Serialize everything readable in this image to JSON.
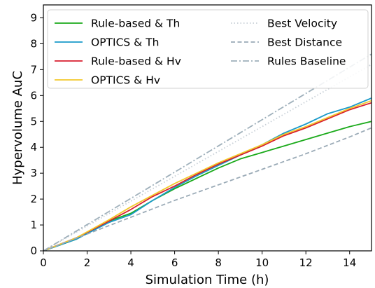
{
  "chart_data": {
    "type": "line",
    "xlabel": "Simulation Time (h)",
    "ylabel": "Hypervolume AuC",
    "xlim": [
      0,
      15
    ],
    "ylim": [
      0,
      9.5
    ],
    "xticks": [
      0,
      2,
      4,
      6,
      8,
      10,
      12,
      14
    ],
    "yticks": [
      0,
      1,
      2,
      3,
      4,
      5,
      6,
      7,
      8,
      9
    ],
    "grid": false,
    "legend": {
      "placement": "top",
      "columns": 2
    },
    "series": [
      {
        "name": "Rule-based & Th",
        "color": "#1aaa1a",
        "style": "solid",
        "x": [
          0,
          1.5,
          3,
          4,
          5,
          6,
          7,
          8,
          9,
          10,
          11,
          12,
          13,
          14,
          15
        ],
        "y": [
          0,
          0.45,
          1.15,
          1.45,
          1.95,
          2.4,
          2.8,
          3.2,
          3.55,
          3.8,
          4.05,
          4.3,
          4.55,
          4.8,
          5.0
        ]
      },
      {
        "name": "OPTICS & Th",
        "color": "#1a9ac9",
        "style": "solid",
        "x": [
          0,
          1.5,
          3,
          4,
          5,
          6,
          7,
          8,
          9,
          10,
          11,
          12,
          13,
          14,
          15
        ],
        "y": [
          0,
          0.45,
          1.1,
          1.4,
          1.95,
          2.45,
          2.9,
          3.3,
          3.7,
          4.1,
          4.55,
          4.9,
          5.3,
          5.55,
          5.9
        ]
      },
      {
        "name": "Rule-based & Hv",
        "color": "#d81e2e",
        "style": "solid",
        "x": [
          0,
          1.5,
          3,
          4,
          5,
          6,
          7,
          8,
          9,
          10,
          11,
          12,
          13,
          14,
          15
        ],
        "y": [
          0,
          0.5,
          1.15,
          1.6,
          2.1,
          2.5,
          2.95,
          3.35,
          3.7,
          4.05,
          4.45,
          4.75,
          5.1,
          5.45,
          5.72
        ]
      },
      {
        "name": "OPTICS & Hv",
        "color": "#f2c82a",
        "style": "solid",
        "x": [
          0,
          1.5,
          3,
          4,
          5,
          6,
          7,
          8,
          9,
          10,
          11,
          12,
          13,
          14,
          15
        ],
        "y": [
          0,
          0.5,
          1.2,
          1.7,
          2.15,
          2.6,
          3.0,
          3.4,
          3.75,
          4.1,
          4.5,
          4.8,
          5.15,
          5.5,
          5.8
        ]
      },
      {
        "name": "Best Velocity",
        "color": "#c7cfd6",
        "style": "dotted",
        "x": [
          0,
          15
        ],
        "y": [
          0,
          7.2
        ]
      },
      {
        "name": "Best Distance",
        "color": "#9aaab6",
        "style": "dashed",
        "x": [
          0,
          2,
          4,
          6,
          8,
          10,
          12,
          14,
          15
        ],
        "y": [
          0,
          0.65,
          1.3,
          1.95,
          2.55,
          3.15,
          3.75,
          4.4,
          4.75
        ]
      },
      {
        "name": "Rules Baseline",
        "color": "#9fb0bb",
        "style": "dashdot",
        "x": [
          0,
          15
        ],
        "y": [
          0,
          7.6
        ]
      }
    ]
  }
}
